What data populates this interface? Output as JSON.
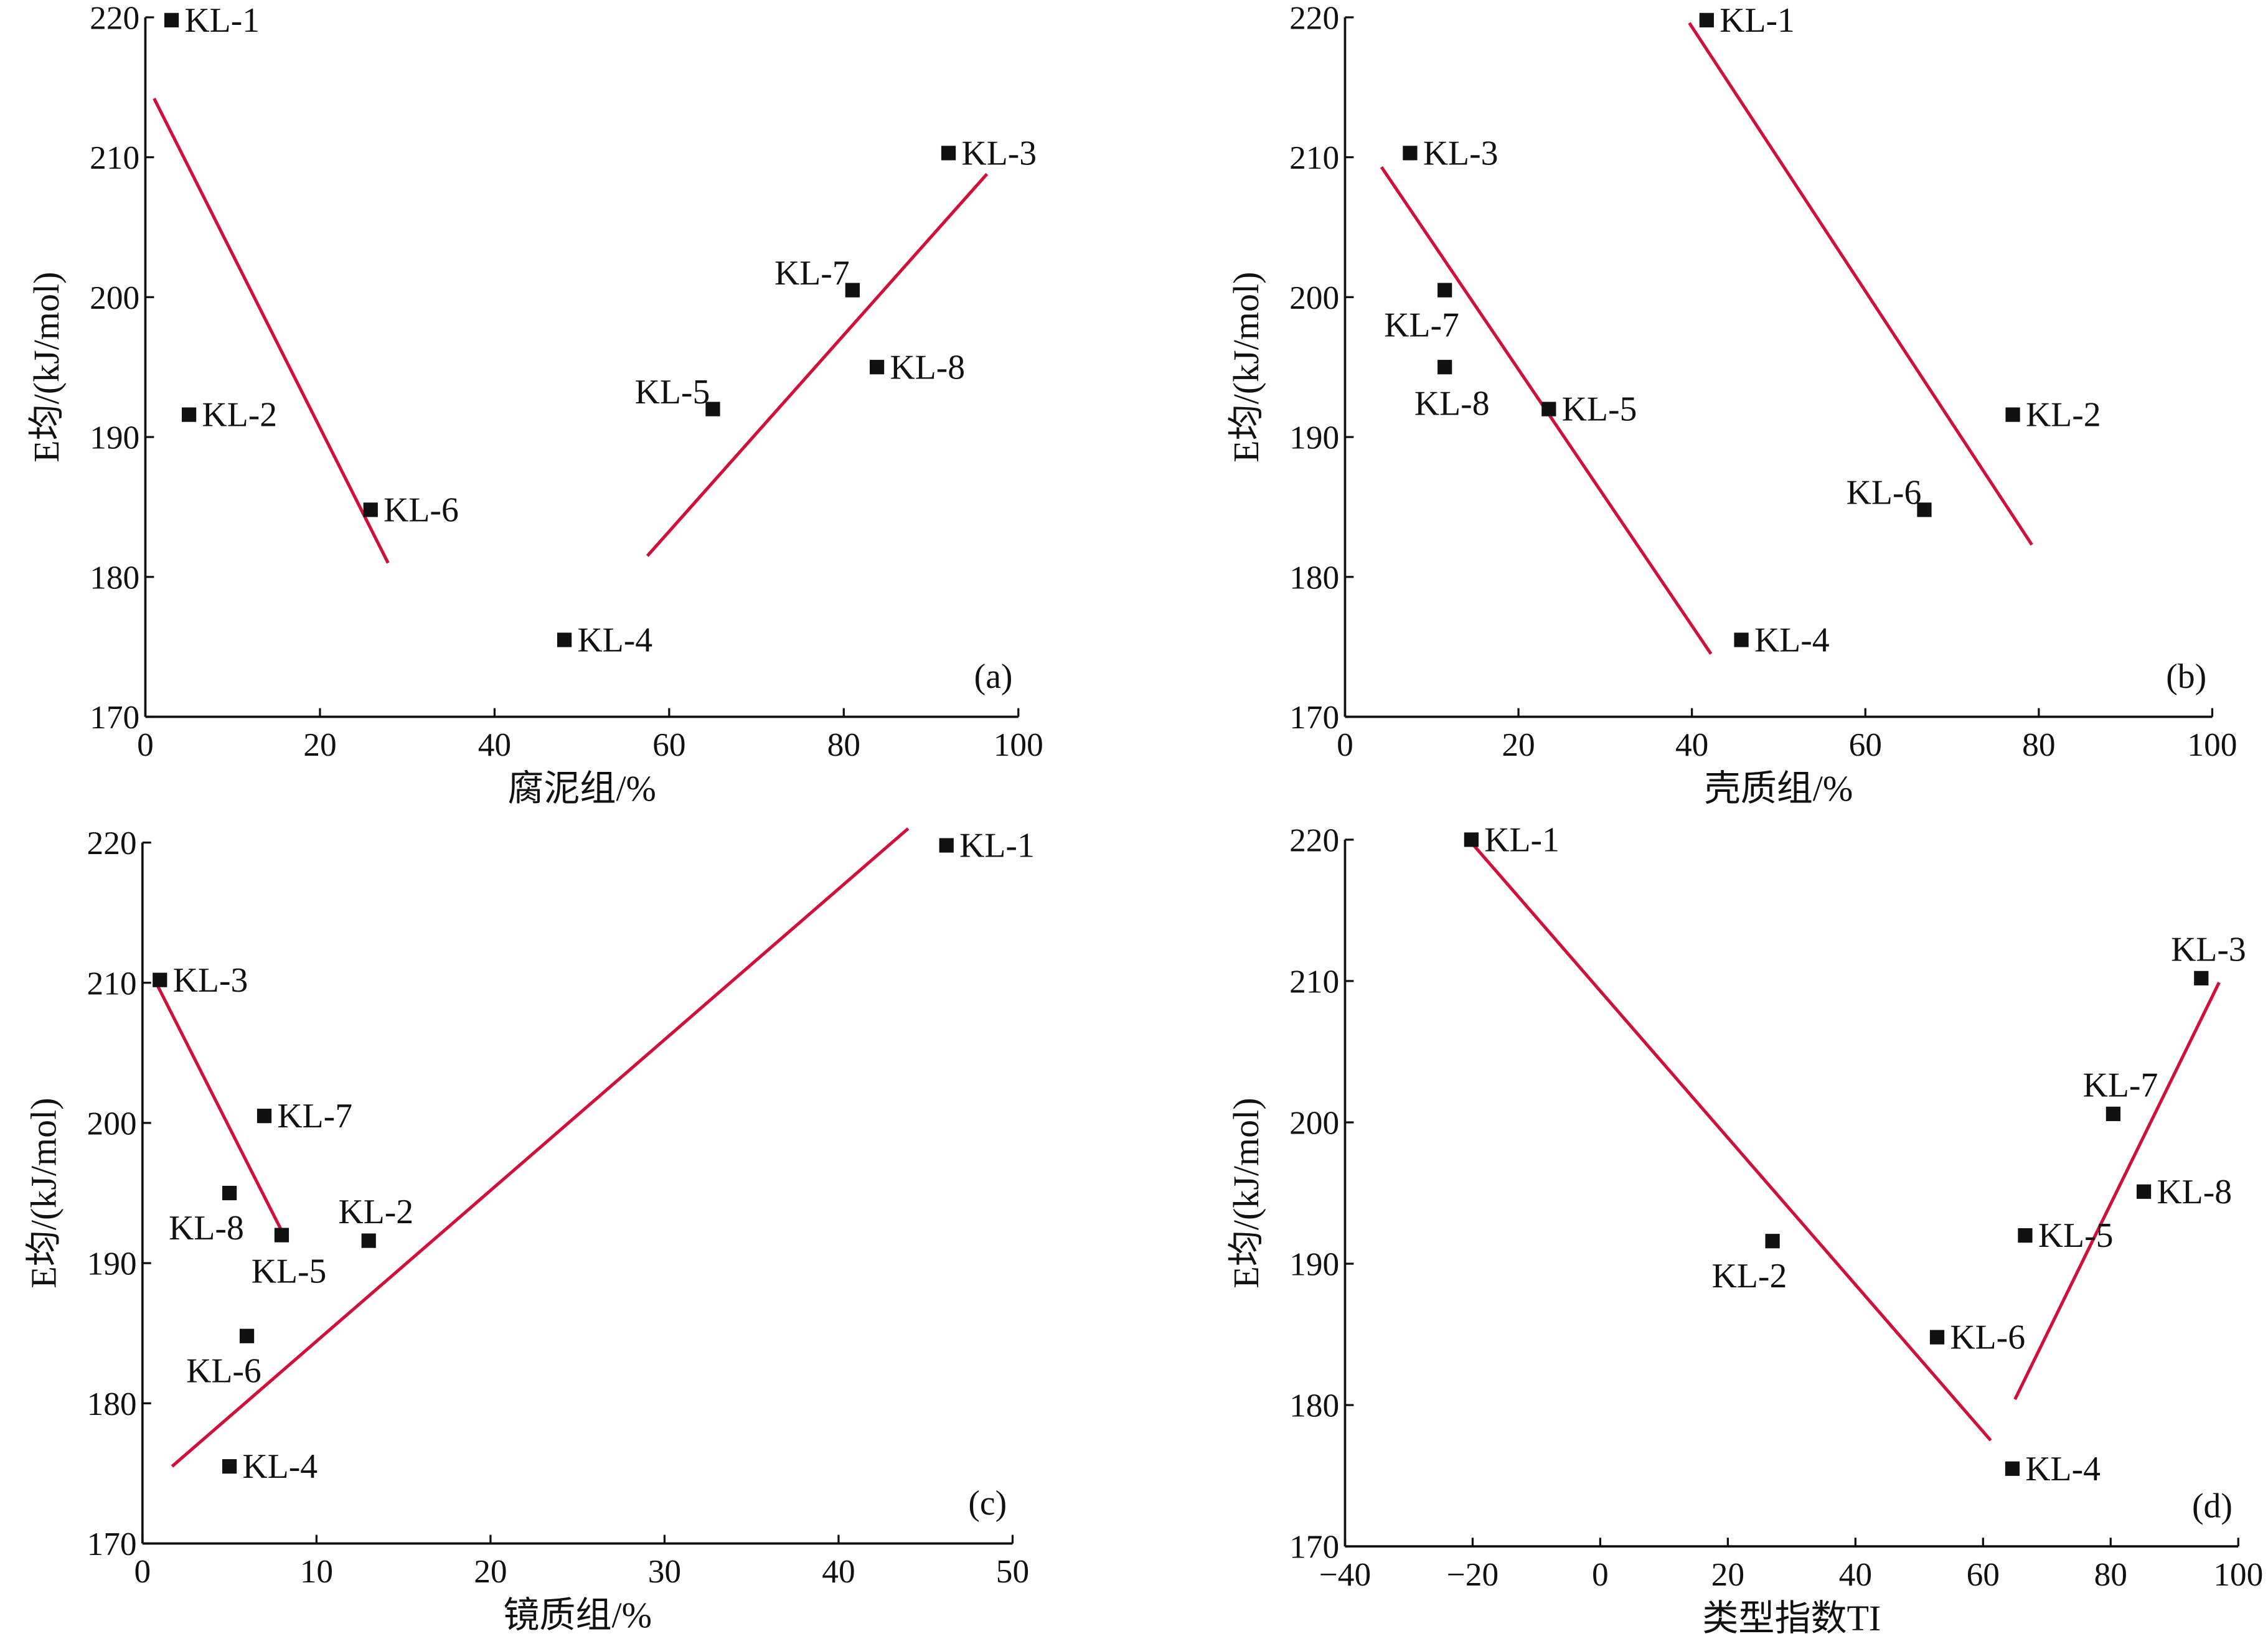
{
  "colors": {
    "fit_line": "#d0103a",
    "point": "#111111",
    "axis": "#111111"
  },
  "chart_data": [
    {
      "type": "scatter",
      "panel_label": "(a)",
      "xlabel": "腐泥组/%",
      "ylabel": "E均/(kJ/mol)",
      "xlim": [
        0,
        100
      ],
      "ylim": [
        170,
        220
      ],
      "xticks": [
        0,
        20,
        40,
        60,
        80,
        100
      ],
      "yticks": [
        170,
        180,
        190,
        200,
        210,
        220
      ],
      "grid": false,
      "points": [
        {
          "name": "KL-1",
          "x": 3,
          "y": 219.8,
          "label_pos": "right"
        },
        {
          "name": "KL-2",
          "x": 5,
          "y": 191.6,
          "label_pos": "right"
        },
        {
          "name": "KL-6",
          "x": 25.8,
          "y": 184.8,
          "label_pos": "right"
        },
        {
          "name": "KL-4",
          "x": 48,
          "y": 175.5,
          "label_pos": "right"
        },
        {
          "name": "KL-5",
          "x": 65,
          "y": 192,
          "label_pos": "upper-left"
        },
        {
          "name": "KL-7",
          "x": 81,
          "y": 200.5,
          "label_pos": "upper-left"
        },
        {
          "name": "KL-8",
          "x": 83.8,
          "y": 195,
          "label_pos": "right"
        },
        {
          "name": "KL-3",
          "x": 92,
          "y": 210.3,
          "label_pos": "right"
        }
      ],
      "fit_lines": [
        {
          "x": [
            1,
            27.8
          ],
          "y": [
            214.2,
            181
          ]
        },
        {
          "x": [
            57.5,
            96.4
          ],
          "y": [
            181.5,
            208.8
          ]
        }
      ]
    },
    {
      "type": "scatter",
      "panel_label": "(b)",
      "xlabel": "壳质组/%",
      "ylabel": "E均/(kJ/mol)",
      "xlim": [
        0,
        100
      ],
      "ylim": [
        170,
        220
      ],
      "xticks": [
        0,
        20,
        40,
        60,
        80,
        100
      ],
      "yticks": [
        170,
        180,
        190,
        200,
        210,
        220
      ],
      "grid": false,
      "points": [
        {
          "name": "KL-1",
          "x": 41.7,
          "y": 219.8,
          "label_pos": "right"
        },
        {
          "name": "KL-3",
          "x": 7.5,
          "y": 210.3,
          "label_pos": "right"
        },
        {
          "name": "KL-7",
          "x": 11.5,
          "y": 200.5,
          "label_pos": "lower-left"
        },
        {
          "name": "KL-8",
          "x": 11.5,
          "y": 195,
          "label_pos": "below"
        },
        {
          "name": "KL-5",
          "x": 23.5,
          "y": 192,
          "label_pos": "right"
        },
        {
          "name": "KL-4",
          "x": 45.7,
          "y": 175.5,
          "label_pos": "right"
        },
        {
          "name": "KL-6",
          "x": 66.8,
          "y": 184.8,
          "label_pos": "upper-left"
        },
        {
          "name": "KL-2",
          "x": 77,
          "y": 191.6,
          "label_pos": "right"
        }
      ],
      "fit_lines": [
        {
          "x": [
            4.2,
            42.2
          ],
          "y": [
            209.3,
            174.5
          ]
        },
        {
          "x": [
            39.7,
            79.2
          ],
          "y": [
            219.6,
            182.3
          ]
        }
      ]
    },
    {
      "type": "scatter",
      "panel_label": "(c)",
      "xlabel": "镜质组/%",
      "ylabel": "E均/(kJ/mol)",
      "xlim": [
        0,
        50
      ],
      "ylim": [
        170,
        220
      ],
      "xticks": [
        0,
        10,
        20,
        30,
        40,
        50
      ],
      "yticks": [
        170,
        180,
        190,
        200,
        210,
        220
      ],
      "grid": false,
      "points": [
        {
          "name": "KL-1",
          "x": 46.2,
          "y": 219.8,
          "label_pos": "right"
        },
        {
          "name": "KL-3",
          "x": 1.0,
          "y": 210.2,
          "label_pos": "right"
        },
        {
          "name": "KL-7",
          "x": 7.0,
          "y": 200.5,
          "label_pos": "right"
        },
        {
          "name": "KL-8",
          "x": 5.0,
          "y": 195,
          "label_pos": "lower-left"
        },
        {
          "name": "KL-5",
          "x": 8.0,
          "y": 192,
          "label_pos": "below"
        },
        {
          "name": "KL-2",
          "x": 13.0,
          "y": 191.6,
          "label_pos": "above"
        },
        {
          "name": "KL-6",
          "x": 6.0,
          "y": 184.8,
          "label_pos": "lower-left"
        },
        {
          "name": "KL-4",
          "x": 5.0,
          "y": 175.5,
          "label_pos": "right"
        }
      ],
      "fit_lines": [
        {
          "x": [
            0.7,
            8
          ],
          "y": [
            210.2,
            192.3
          ]
        },
        {
          "x": [
            1.7,
            44
          ],
          "y": [
            175.5,
            221
          ]
        }
      ]
    },
    {
      "type": "scatter",
      "panel_label": "(d)",
      "xlabel": "类型指数TI",
      "ylabel": "E均/(kJ/mol)",
      "xlim": [
        -40,
        100
      ],
      "ylim": [
        170,
        220
      ],
      "xticks": [
        -40,
        -20,
        0,
        20,
        40,
        60,
        80,
        100
      ],
      "yticks": [
        170,
        180,
        190,
        200,
        210,
        220
      ],
      "grid": false,
      "points": [
        {
          "name": "KL-1",
          "x": -20.2,
          "y": 220,
          "label_pos": "right"
        },
        {
          "name": "KL-2",
          "x": 27,
          "y": 191.6,
          "label_pos": "lower-left"
        },
        {
          "name": "KL-6",
          "x": 52.8,
          "y": 184.8,
          "label_pos": "right"
        },
        {
          "name": "KL-4",
          "x": 64.6,
          "y": 175.5,
          "label_pos": "right"
        },
        {
          "name": "KL-5",
          "x": 66.6,
          "y": 192,
          "label_pos": "right"
        },
        {
          "name": "KL-7",
          "x": 80.4,
          "y": 200.6,
          "label_pos": "above"
        },
        {
          "name": "KL-8",
          "x": 85.2,
          "y": 195.1,
          "label_pos": "right"
        },
        {
          "name": "KL-3",
          "x": 94.2,
          "y": 210.2,
          "label_pos": "above"
        }
      ],
      "fit_lines": [
        {
          "x": [
            -20.4,
            61.2
          ],
          "y": [
            219.9,
            177.5
          ]
        },
        {
          "x": [
            65,
            97
          ],
          "y": [
            180.4,
            209.9
          ]
        }
      ]
    }
  ]
}
